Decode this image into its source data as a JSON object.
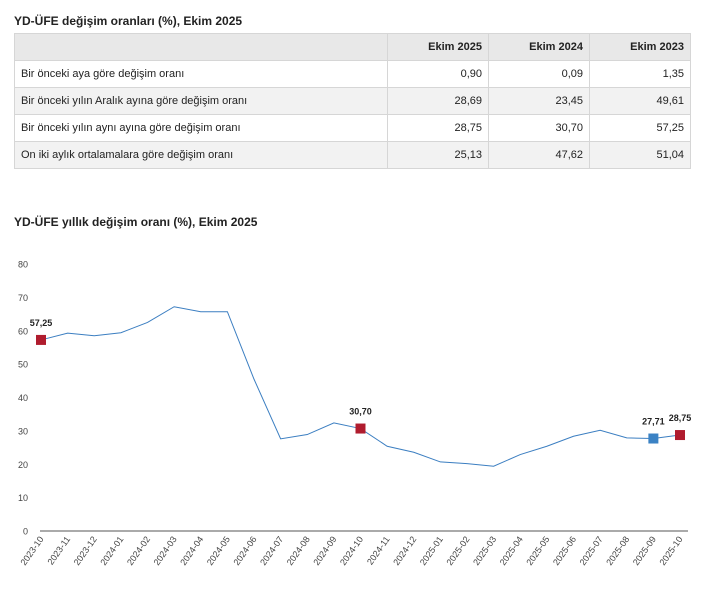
{
  "table": {
    "title": "YD-ÜFE değişim oranları (%), Ekim 2025",
    "columns": [
      "",
      "Ekim 2025",
      "Ekim 2024",
      "Ekim 2023"
    ],
    "rows": [
      {
        "label": "Bir önceki aya göre değişim oranı",
        "values": [
          "0,90",
          "0,09",
          "1,35"
        ]
      },
      {
        "label": "Bir önceki yılın Aralık ayına göre değişim oranı",
        "values": [
          "28,69",
          "23,45",
          "49,61"
        ]
      },
      {
        "label": "Bir önceki yılın aynı ayına göre değişim oranı",
        "values": [
          "28,75",
          "30,70",
          "57,25"
        ]
      },
      {
        "label": "On iki aylık ortalamalara göre değişim oranı",
        "values": [
          "25,13",
          "47,62",
          "51,04"
        ]
      }
    ]
  },
  "chart_data": {
    "type": "line",
    "title": "YD-ÜFE yıllık değişim oranı (%), Ekim 2025",
    "xlabel": "",
    "ylabel": "",
    "ylim": [
      0,
      80
    ],
    "yticks": [
      0,
      10,
      20,
      30,
      40,
      50,
      60,
      70,
      80
    ],
    "grid": false,
    "legend": "none",
    "x": [
      "2023-10",
      "2023-11",
      "2023-12",
      "2024-01",
      "2024-02",
      "2024-03",
      "2024-04",
      "2024-05",
      "2024-06",
      "2024-07",
      "2024-08",
      "2024-09",
      "2024-10",
      "2024-11",
      "2024-12",
      "2025-01",
      "2025-02",
      "2025-03",
      "2025-04",
      "2025-05",
      "2025-06",
      "2025-07",
      "2025-08",
      "2025-09",
      "2025-10"
    ],
    "values": [
      57.25,
      59.3,
      58.5,
      59.4,
      62.5,
      67.2,
      65.7,
      65.7,
      45.5,
      27.6,
      28.9,
      32.4,
      30.7,
      25.4,
      23.6,
      20.7,
      20.2,
      19.4,
      22.9,
      25.4,
      28.4,
      30.2,
      27.9,
      27.71,
      28.75
    ],
    "line_color": "#3b7ec1",
    "markers": [
      {
        "index": 0,
        "label": "57,25",
        "color": "#b01c2e"
      },
      {
        "index": 12,
        "label": "30,70",
        "color": "#b01c2e"
      },
      {
        "index": 23,
        "label": "27,71",
        "color": "#3b82c4"
      },
      {
        "index": 24,
        "label": "28,75",
        "color": "#b01c2e"
      }
    ]
  }
}
